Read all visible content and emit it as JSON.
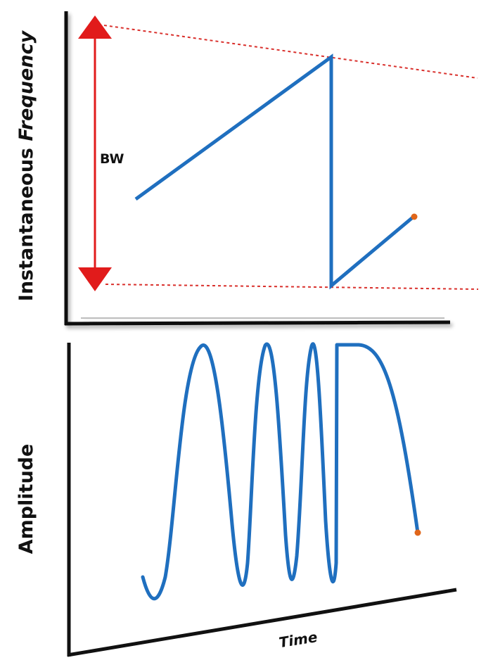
{
  "top_panel": {
    "ylabel_regular": "Instantaneous ",
    "ylabel_italic": "Frequency",
    "bandwidth_label": "BW"
  },
  "bottom_panel": {
    "ylabel": "Amplitude",
    "xlabel": "Time"
  },
  "colors": {
    "signal": "#1f6fbf",
    "bandwidth_arrow": "#e11b1b",
    "guide_lines": "#d9302c",
    "end_marker": "#e0661a",
    "axes": "#111111"
  }
}
